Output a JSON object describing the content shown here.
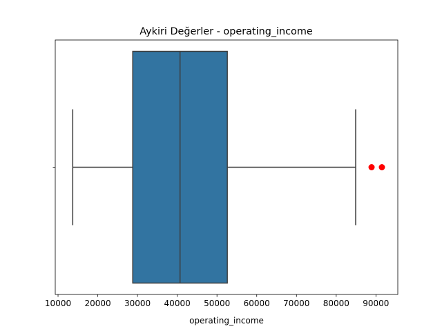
{
  "chart_data": {
    "type": "box",
    "title": "Aykiri Değerler - operating_income",
    "xlabel": "operating_income",
    "ylabel": "",
    "xlim": [
      9300,
      95500
    ],
    "x_ticks": [
      10000,
      20000,
      30000,
      40000,
      50000,
      60000,
      70000,
      80000,
      90000
    ],
    "x_tick_labels": [
      "10000",
      "20000",
      "30000",
      "40000",
      "50000",
      "60000",
      "70000",
      "80000",
      "90000"
    ],
    "orientation": "horizontal",
    "box": {
      "whisker_low": 13700,
      "q1": 28800,
      "median": 40700,
      "q3": 52600,
      "whisker_high": 84900
    },
    "outliers": [
      88900,
      91500
    ],
    "colors": {
      "box_fill": "#3274a1",
      "line": "#3d3d3d",
      "outlier": "#ff0000"
    },
    "grid": false
  }
}
